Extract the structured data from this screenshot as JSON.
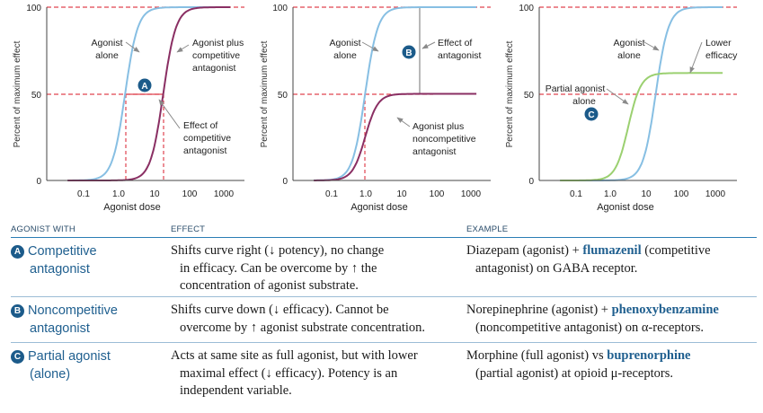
{
  "colors": {
    "blue": "#87bfe3",
    "purple": "#8a2f63",
    "green": "#9bd070",
    "red": "#e0434f",
    "badge": "#1c5b8a",
    "accent": "#1f5f8f"
  },
  "chart_data": [
    {
      "type": "line",
      "panel": "A",
      "xlabel": "Agonist dose",
      "ylabel": "Percent of maximum effect",
      "x_scale": "log",
      "xlim": [
        0.01,
        3000
      ],
      "ylim": [
        0,
        100
      ],
      "xticks": [
        "0.1",
        "1.0",
        "10",
        "100",
        "1000"
      ],
      "yticks": [
        "0",
        "50",
        "100"
      ],
      "series": [
        {
          "label": "Agonist alone",
          "ec50": 1.5,
          "emax": 100,
          "hill": 1.05,
          "color": "blue"
        },
        {
          "label": "Agonist plus competitive antagonist",
          "ec50": 18,
          "emax": 100,
          "hill": 1.05,
          "color": "purple"
        }
      ],
      "annotations": [
        "Effect of competitive antagonist"
      ],
      "marker": "A"
    },
    {
      "type": "line",
      "panel": "B",
      "xlabel": "Agonist dose",
      "ylabel": "Percent of maximum effect",
      "x_scale": "log",
      "xlim": [
        0.01,
        3000
      ],
      "ylim": [
        0,
        100
      ],
      "xticks": [
        "0.1",
        "1.0",
        "10",
        "100",
        "1000"
      ],
      "yticks": [
        "0",
        "50",
        "100"
      ],
      "series": [
        {
          "label": "Agonist alone",
          "ec50": 1.0,
          "emax": 100,
          "hill": 1.05,
          "color": "blue"
        },
        {
          "label": "Agonist plus noncompetitive antagonist",
          "ec50": 1.0,
          "emax": 50,
          "hill": 1.05,
          "color": "purple"
        }
      ],
      "annotations": [
        "Effect of antagonist"
      ],
      "marker": "B"
    },
    {
      "type": "line",
      "panel": "C",
      "xlabel": "Agonist dose",
      "ylabel": "Percent of maximum effect",
      "x_scale": "log",
      "xlim": [
        0.01,
        3000
      ],
      "ylim": [
        0,
        100
      ],
      "xticks": [
        "0.1",
        "1.0",
        "10",
        "100",
        "1000"
      ],
      "yticks": [
        "0",
        "50",
        "100"
      ],
      "series": [
        {
          "label": "Agonist alone",
          "ec50": 18,
          "emax": 100,
          "hill": 1.05,
          "color": "blue"
        },
        {
          "label": "Partial agonist alone",
          "ec50": 3,
          "emax": 62,
          "hill": 1.05,
          "color": "green"
        }
      ],
      "annotations": [
        "Lower efficacy"
      ],
      "marker": "C"
    }
  ],
  "table": {
    "headers": [
      "AGONIST WITH",
      "EFFECT",
      "EXAMPLE"
    ],
    "rows": [
      {
        "badge": "A",
        "name_lines": [
          "Competitive",
          "antagonist"
        ],
        "effect_lines": [
          "Shifts curve right (↓ potency), no change",
          "in efficacy. Can be overcome by ↑ the",
          "concentration of agonist substrate."
        ],
        "ex_pre": "Diazepam (agonist) + ",
        "ex_drug": "flumazenil",
        "ex_post": " (competitive",
        "ex_line2": "antagonist) on GABA receptor."
      },
      {
        "badge": "B",
        "name_lines": [
          "Noncompetitive",
          "antagonist"
        ],
        "effect_lines": [
          "Shifts curve down (↓ efficacy). Cannot be",
          "overcome by ↑ agonist substrate concentration."
        ],
        "ex_pre": "Norepinephrine (agonist) + ",
        "ex_drug": "phenoxybenzamine",
        "ex_post": "",
        "ex_line2": "(noncompetitive antagonist) on α-receptors."
      },
      {
        "badge": "C",
        "name_lines": [
          "Partial agonist",
          "(alone)"
        ],
        "effect_lines": [
          "Acts at same site as full agonist, but with lower",
          "maximal effect (↓ efficacy). Potency is an",
          "independent variable."
        ],
        "ex_pre": "Morphine (full agonist) vs ",
        "ex_drug": "buprenorphine",
        "ex_post": "",
        "ex_line2": "(partial agonist) at opioid μ-receptors."
      }
    ]
  }
}
